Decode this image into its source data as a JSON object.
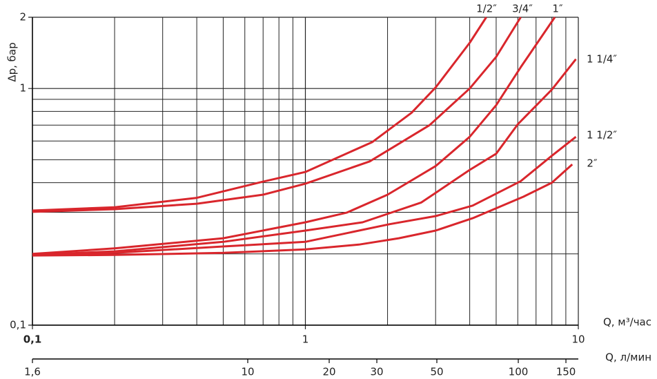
{
  "chart_data": {
    "type": "line",
    "xlabel": "Q, м³/час",
    "ylabel": "Δp, бар",
    "x2label": "Q, л/мин",
    "xscale": "log",
    "yscale": "log",
    "x2scale": "log",
    "grid": true,
    "xlim": [
      0.1,
      10
    ],
    "xticks": [
      {
        "value": 0.1,
        "label": "0,1"
      },
      1,
      10
    ],
    "xminor_ticks": [
      0.2,
      0.3,
      0.4,
      0.5,
      0.6,
      0.7,
      0.8,
      0.9,
      2,
      3,
      4,
      5,
      6,
      7,
      8,
      9
    ],
    "ylim": [
      0.1,
      2
    ],
    "yticks": [
      {
        "value": 0.1,
        "label": "0,1"
      },
      1,
      2
    ],
    "yminor_ticks": [
      0.2,
      0.3,
      0.4,
      0.5,
      0.6,
      0.7,
      0.8,
      0.9
    ],
    "x2lim": [
      1.6,
      166.7
    ],
    "x2ticks": [
      {
        "value": 1.6,
        "label": "1,6"
      },
      10,
      20,
      30,
      50,
      100,
      150
    ],
    "series": [
      {
        "name": "1/2″",
        "color": "#d9262c",
        "x": [
          0.1,
          0.2,
          0.4,
          0.7,
          1,
          1.76,
          2.45,
          3,
          4,
          4.6
        ],
        "values": [
          0.305,
          0.315,
          0.345,
          0.404,
          0.444,
          0.594,
          0.79,
          1.01,
          1.56,
          2
        ]
      },
      {
        "name": "3/4″",
        "color": "#d9262c",
        "x": [
          0.1,
          0.2,
          0.4,
          0.7,
          1,
          1.72,
          2.85,
          4,
          5,
          6.15
        ],
        "values": [
          0.301,
          0.309,
          0.326,
          0.356,
          0.396,
          0.492,
          0.7,
          1.0,
          1.36,
          2
        ]
      },
      {
        "name": "1″",
        "color": "#d9262c",
        "x": [
          0.1,
          0.2,
          0.5,
          1,
          1.42,
          2,
          3,
          4,
          5,
          6.15,
          8.2
        ],
        "values": [
          0.2,
          0.211,
          0.233,
          0.272,
          0.299,
          0.356,
          0.47,
          0.625,
          0.85,
          1.23,
          2
        ]
      },
      {
        "name": "1 1/4″",
        "color": "#d9262c",
        "x": [
          0.1,
          0.2,
          0.5,
          1,
          1.62,
          2.66,
          4,
          5,
          6,
          8,
          9.8
        ],
        "values": [
          0.198,
          0.205,
          0.225,
          0.251,
          0.272,
          0.33,
          0.453,
          0.53,
          0.706,
          0.99,
          1.33
        ]
      },
      {
        "name": "1 1/2″",
        "color": "#d9262c",
        "x": [
          0.1,
          0.2,
          0.5,
          1,
          2.03,
          3,
          4.1,
          6.15,
          8,
          9.8
        ],
        "values": [
          0.198,
          0.202,
          0.215,
          0.225,
          0.267,
          0.289,
          0.32,
          0.406,
          0.52,
          0.625
        ]
      },
      {
        "name": "2″",
        "color": "#d9262c",
        "x": [
          0.1,
          0.2,
          0.5,
          1,
          1.57,
          2.2,
          3,
          4.1,
          6.3,
          8,
          9.5
        ],
        "values": [
          0.197,
          0.198,
          0.202,
          0.209,
          0.219,
          0.233,
          0.251,
          0.283,
          0.349,
          0.4,
          0.478
        ]
      }
    ]
  }
}
